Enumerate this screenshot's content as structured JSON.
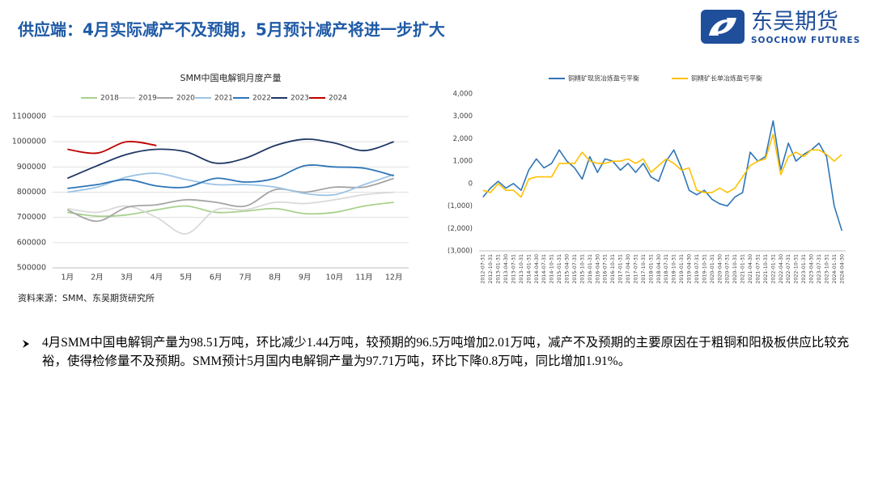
{
  "header": {
    "title": "供应端：4月实际减产不及预期，5月预计减产将进一步扩大",
    "logo_cn": "东吴期货",
    "logo_en": "SOOCHOW FUTURES"
  },
  "source": "资料来源：SMM、东吴期货研究所",
  "body": "4月SMM中国电解铜产量为98.51万吨，环比减少1.44万吨，较预期的96.5万吨增加2.01万吨，减产不及预期的主要原因在于粗铜和阳极板供应比较充裕，使得检修量不及预期。SMM预计5月国内电解铜产量为97.71万吨，环比下降0.8万吨，同比增加1.91%。",
  "chart_data": [
    {
      "type": "line",
      "title": "SMM中国电解铜月度产量",
      "legend": "top",
      "grid": true,
      "categories": [
        "1月",
        "2月",
        "3月",
        "4月",
        "5月",
        "6月",
        "7月",
        "8月",
        "9月",
        "10月",
        "11月",
        "12月"
      ],
      "ylim": [
        500000,
        1100000
      ],
      "yticks": [
        500000,
        600000,
        700000,
        800000,
        900000,
        1000000,
        1100000
      ],
      "series": [
        {
          "name": "2018",
          "color": "#a9d18e",
          "values": [
            720000,
            705000,
            710000,
            730000,
            745000,
            720000,
            725000,
            735000,
            715000,
            720000,
            745000,
            760000
          ]
        },
        {
          "name": "2019",
          "color": "#d9d9d9",
          "values": [
            735000,
            720000,
            745000,
            700000,
            635000,
            730000,
            730000,
            760000,
            755000,
            770000,
            790000,
            800000
          ]
        },
        {
          "name": "2020",
          "color": "#a5a5a5",
          "values": [
            730000,
            685000,
            740000,
            750000,
            770000,
            760000,
            745000,
            810000,
            800000,
            820000,
            820000,
            855000
          ]
        },
        {
          "name": "2021",
          "color": "#9dc3e6",
          "values": [
            800000,
            820000,
            860000,
            875000,
            850000,
            830000,
            830000,
            820000,
            795000,
            790000,
            830000,
            870000
          ]
        },
        {
          "name": "2022",
          "color": "#2e75b6",
          "values": [
            815000,
            830000,
            850000,
            825000,
            820000,
            855000,
            840000,
            855000,
            905000,
            900000,
            895000,
            865000
          ]
        },
        {
          "name": "2023",
          "color": "#1f3864",
          "values": [
            855000,
            905000,
            950000,
            970000,
            960000,
            915000,
            935000,
            985000,
            1010000,
            995000,
            965000,
            1000000
          ]
        },
        {
          "name": "2024",
          "color": "#c00000",
          "values": [
            970000,
            955000,
            1000000,
            985100,
            null,
            null,
            null,
            null,
            null,
            null,
            null,
            null
          ]
        }
      ]
    },
    {
      "type": "line",
      "legend": "top",
      "grid": false,
      "categories": [
        "2012-07-31",
        "2012-10-31",
        "2013-01-31",
        "2013-04-30",
        "2013-07-31",
        "2013-10-31",
        "2014-01-31",
        "2014-04-30",
        "2014-07-31",
        "2014-10-31",
        "2015-01-31",
        "2015-04-30",
        "2015-07-31",
        "2015-10-31",
        "2016-01-31",
        "2016-04-30",
        "2016-07-31",
        "2016-10-31",
        "2017-01-31",
        "2017-04-30",
        "2017-07-31",
        "2017-10-31",
        "2018-01-31",
        "2018-04-30",
        "2018-07-31",
        "2018-10-31",
        "2019-01-31",
        "2019-04-30",
        "2019-07-31",
        "2019-10-31",
        "2020-01-31",
        "2020-04-30",
        "2020-07-31",
        "2020-10-31",
        "2021-01-31",
        "2021-04-30",
        "2021-07-31",
        "2021-10-31",
        "2022-01-31",
        "2022-04-30",
        "2022-07-31",
        "2022-10-31",
        "2023-01-31",
        "2023-04-30",
        "2023-07-31",
        "2023-10-31",
        "2024-01-31",
        "2024-04-30"
      ],
      "ylim": [
        -3000,
        4000
      ],
      "yticks": [
        {
          "value": 4000,
          "label": "4,000"
        },
        {
          "value": 3000,
          "label": "3,000"
        },
        {
          "value": 2000,
          "label": "2,000"
        },
        {
          "value": 1000,
          "label": "1,000"
        },
        0,
        {
          "value": -1000,
          "label": "(1,000)"
        },
        {
          "value": -2000,
          "label": "(2,000)"
        },
        {
          "value": -3000,
          "label": "(3,000)"
        }
      ],
      "series": [
        {
          "name": "铜精矿现货冶炼盈亏平衡",
          "color": "#2e75b6",
          "values": [
            -600,
            -200,
            100,
            -200,
            0,
            -300,
            600,
            1100,
            700,
            900,
            1500,
            1000,
            700,
            200,
            1200,
            500,
            1100,
            1000,
            600,
            900,
            500,
            900,
            300,
            100,
            1000,
            1500,
            700,
            -300,
            -500,
            -300,
            -700,
            -900,
            -1000,
            -600,
            -400,
            1400,
            1000,
            1200,
            2800,
            600,
            1800,
            1000,
            1300,
            1500,
            1800,
            1200,
            -1000,
            -2100
          ]
        },
        {
          "name": "铜精矿长单冶炼盈亏平衡",
          "color": "#ffc000",
          "values": [
            -300,
            -400,
            0,
            -300,
            -300,
            -600,
            200,
            300,
            300,
            300,
            900,
            900,
            900,
            1400,
            1000,
            900,
            900,
            1000,
            1000,
            1100,
            900,
            1100,
            500,
            800,
            1100,
            900,
            600,
            700,
            -300,
            -400,
            -400,
            -200,
            -400,
            -200,
            300,
            800,
            1000,
            1100,
            2200,
            400,
            1200,
            1400,
            1200,
            1500,
            1500,
            1300,
            1000,
            1300
          ]
        }
      ]
    }
  ]
}
